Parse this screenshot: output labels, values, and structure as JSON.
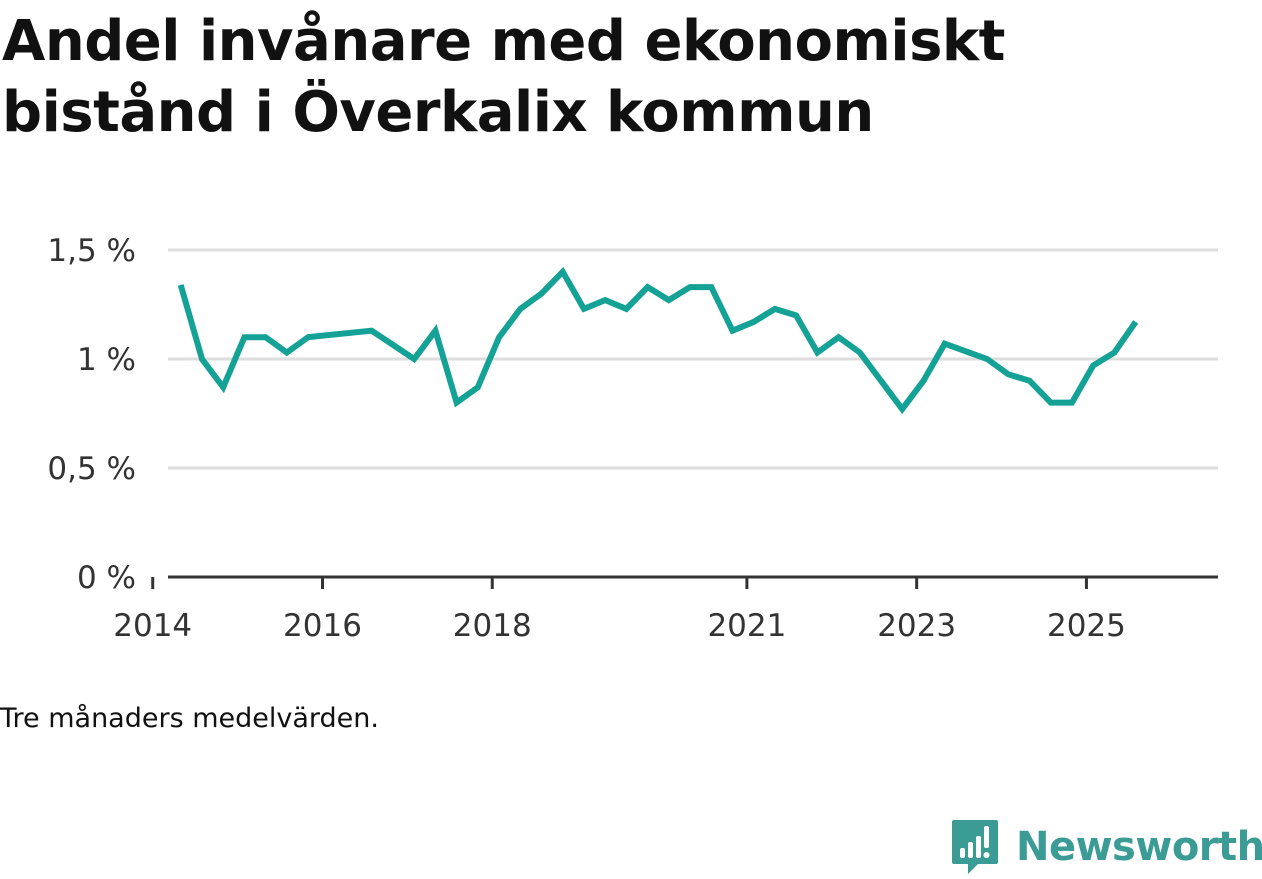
{
  "colors": {
    "line": "#14a196",
    "grid": "#dddddd",
    "axis": "#333333",
    "brand": "#3b9b95"
  },
  "chart_data": {
    "type": "line",
    "title_lines": [
      "Andel invånare med ekonomiskt",
      "bistånd i Överkalix kommun"
    ],
    "caption": "Tre månaders medelvärden.",
    "xlabel": "",
    "ylabel": "",
    "ylim": [
      0,
      1.5
    ],
    "xlim": [
      2013.85,
      2026.55
    ],
    "y_ticks": [
      {
        "value": 0,
        "label": "0 %"
      },
      {
        "value": 0.5,
        "label": "0,5 %"
      },
      {
        "value": 1,
        "label": "1 %"
      },
      {
        "value": 1.5,
        "label": "1,5 %"
      }
    ],
    "x_ticks": [
      {
        "value": 2014,
        "label": "2014"
      },
      {
        "value": 2016,
        "label": "2016"
      },
      {
        "value": 2018,
        "label": "2018"
      },
      {
        "value": 2021,
        "label": "2021"
      },
      {
        "value": 2023,
        "label": "2023"
      },
      {
        "value": 2025,
        "label": "2025"
      }
    ],
    "grid": true,
    "series": [
      {
        "name": "Andel invånare med ekonomiskt bistånd",
        "x": [
          2014.33,
          2014.58,
          2014.83,
          2015.08,
          2015.33,
          2015.58,
          2015.83,
          2016.58,
          2017.08,
          2017.33,
          2017.58,
          2017.83,
          2018.08,
          2018.33,
          2018.58,
          2018.83,
          2019.08,
          2019.33,
          2019.58,
          2019.83,
          2020.08,
          2020.33,
          2020.58,
          2020.83,
          2021.08,
          2021.33,
          2021.58,
          2021.83,
          2022.08,
          2022.33,
          2022.83,
          2023.08,
          2023.33,
          2023.83,
          2024.08,
          2024.33,
          2024.58,
          2024.83,
          2025.08,
          2025.33,
          2025.58
        ],
        "values": [
          1.34,
          1.0,
          0.87,
          1.1,
          1.1,
          1.03,
          1.1,
          1.13,
          1.0,
          1.13,
          0.8,
          0.87,
          1.1,
          1.23,
          1.3,
          1.4,
          1.23,
          1.27,
          1.23,
          1.33,
          1.27,
          1.33,
          1.33,
          1.13,
          1.17,
          1.23,
          1.2,
          1.03,
          1.1,
          1.03,
          0.77,
          0.9,
          1.07,
          1.0,
          0.93,
          0.9,
          0.8,
          0.8,
          0.97,
          1.03,
          1.17
        ]
      }
    ]
  },
  "brand": {
    "name": "Newsworthy",
    "icon": "newsworthy-logo-icon"
  }
}
